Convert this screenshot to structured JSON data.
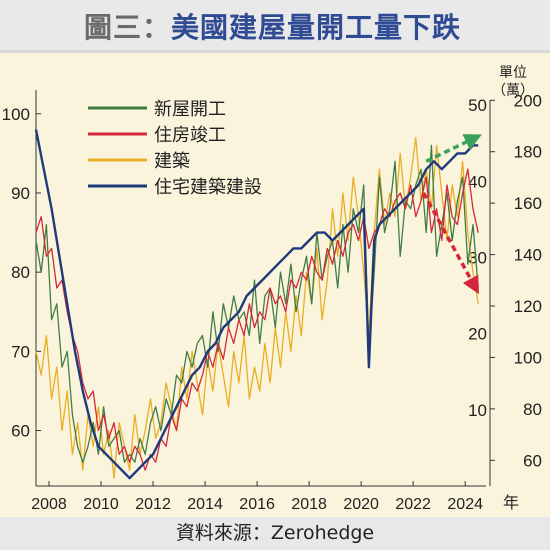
{
  "title": {
    "prefix": "圖三：",
    "main": "美國建屋量開工量下跌"
  },
  "source": "資料來源：Zerohedge",
  "chart_data": {
    "type": "line",
    "xlabel": "年",
    "x_ticks": [
      2008,
      2010,
      2012,
      2014,
      2016,
      2018,
      2020,
      2022,
      2024
    ],
    "x_range": [
      2007.5,
      2024.8
    ],
    "left_axis": {
      "ticks": [
        60,
        70,
        80,
        90,
        100
      ],
      "range": [
        53,
        103
      ]
    },
    "right_axis_1": {
      "ticks": [
        10,
        20,
        30,
        40,
        50
      ],
      "range": [
        0,
        52
      ]
    },
    "right_axis_2": {
      "label_line1": "單位",
      "label_line2": "（萬）",
      "ticks": [
        60,
        80,
        100,
        120,
        140,
        160,
        180,
        200
      ],
      "range": [
        50,
        204
      ]
    },
    "legend": [
      "新屋開工",
      "住房竣工",
      "建築",
      "住宅建築建設"
    ],
    "colors": [
      "#3f7d45",
      "#d4283a",
      "#e9ae24",
      "#1f3a7a"
    ],
    "series": [
      {
        "name": "新屋開工",
        "x": [
          2007.5,
          2007.7,
          2007.9,
          2008.1,
          2008.3,
          2008.5,
          2008.7,
          2008.9,
          2009.1,
          2009.3,
          2009.5,
          2009.7,
          2009.9,
          2010.1,
          2010.3,
          2010.5,
          2010.7,
          2010.9,
          2011.1,
          2011.3,
          2011.5,
          2011.7,
          2011.9,
          2012.1,
          2012.3,
          2012.5,
          2012.7,
          2012.9,
          2013.1,
          2013.3,
          2013.5,
          2013.7,
          2013.9,
          2014.1,
          2014.3,
          2014.5,
          2014.7,
          2014.9,
          2015.1,
          2015.3,
          2015.5,
          2015.7,
          2015.9,
          2016.1,
          2016.3,
          2016.5,
          2016.7,
          2016.9,
          2017.1,
          2017.3,
          2017.5,
          2017.7,
          2017.9,
          2018.1,
          2018.3,
          2018.5,
          2018.7,
          2018.9,
          2019.1,
          2019.3,
          2019.5,
          2019.7,
          2019.9,
          2020.1,
          2020.3,
          2020.5,
          2020.7,
          2020.9,
          2021.1,
          2021.3,
          2021.5,
          2021.7,
          2021.9,
          2022.1,
          2022.3,
          2022.5,
          2022.7,
          2022.9,
          2023.1,
          2023.3,
          2023.5,
          2023.7,
          2023.9,
          2024.1,
          2024.3,
          2024.5
        ],
        "y": [
          84,
          80,
          86,
          74,
          76,
          68,
          70,
          62,
          58,
          56,
          58,
          61,
          57,
          63,
          58,
          59,
          60,
          56,
          57,
          56,
          59,
          57,
          61,
          63,
          60,
          64,
          62,
          67,
          66,
          70,
          68,
          71,
          72,
          68,
          75,
          70,
          76,
          73,
          77,
          74,
          75,
          72,
          79,
          71,
          77,
          78,
          73,
          80,
          76,
          81,
          75,
          79,
          82,
          76,
          85,
          79,
          82,
          84,
          78,
          86,
          80,
          88,
          85,
          91,
          70,
          80,
          92,
          85,
          88,
          94,
          82,
          89,
          88,
          91,
          93,
          85,
          96,
          82,
          86,
          90,
          84,
          89,
          92,
          81,
          86,
          78
        ]
      },
      {
        "name": "住房竣工",
        "x": [
          2007.5,
          2007.7,
          2007.9,
          2008.1,
          2008.3,
          2008.5,
          2008.7,
          2008.9,
          2009.1,
          2009.3,
          2009.5,
          2009.7,
          2009.9,
          2010.1,
          2010.3,
          2010.5,
          2010.7,
          2010.9,
          2011.1,
          2011.3,
          2011.5,
          2011.7,
          2011.9,
          2012.1,
          2012.3,
          2012.5,
          2012.7,
          2012.9,
          2013.1,
          2013.3,
          2013.5,
          2013.7,
          2013.9,
          2014.1,
          2014.3,
          2014.5,
          2014.7,
          2014.9,
          2015.1,
          2015.3,
          2015.5,
          2015.7,
          2015.9,
          2016.1,
          2016.3,
          2016.5,
          2016.7,
          2016.9,
          2017.1,
          2017.3,
          2017.5,
          2017.7,
          2017.9,
          2018.1,
          2018.3,
          2018.5,
          2018.7,
          2018.9,
          2019.1,
          2019.3,
          2019.5,
          2019.7,
          2019.9,
          2020.1,
          2020.3,
          2020.5,
          2020.7,
          2020.9,
          2021.1,
          2021.3,
          2021.5,
          2021.7,
          2021.9,
          2022.1,
          2022.3,
          2022.5,
          2022.7,
          2022.9,
          2023.1,
          2023.3,
          2023.5,
          2023.7,
          2023.9,
          2024.1,
          2024.3,
          2024.5
        ],
        "y": [
          85,
          87,
          82,
          83,
          78,
          79,
          75,
          72,
          70,
          66,
          64,
          65,
          60,
          62,
          59,
          61,
          57,
          58,
          56,
          58,
          57,
          55,
          57,
          56,
          59,
          58,
          62,
          60,
          64,
          63,
          66,
          65,
          67,
          70,
          68,
          71,
          69,
          73,
          71,
          74,
          72,
          76,
          73,
          75,
          74,
          78,
          76,
          77,
          75,
          79,
          78,
          80,
          79,
          82,
          80,
          79,
          83,
          81,
          84,
          82,
          85,
          86,
          84,
          87,
          83,
          85,
          86,
          88,
          87,
          89,
          90,
          88,
          91,
          87,
          89,
          92,
          85,
          88,
          84,
          91,
          87,
          86,
          90,
          93,
          88,
          85
        ]
      },
      {
        "name": "建築",
        "x": [
          2007.5,
          2007.7,
          2007.9,
          2008.1,
          2008.3,
          2008.5,
          2008.7,
          2008.9,
          2009.1,
          2009.3,
          2009.5,
          2009.7,
          2009.9,
          2010.1,
          2010.3,
          2010.5,
          2010.7,
          2010.9,
          2011.1,
          2011.3,
          2011.5,
          2011.7,
          2011.9,
          2012.1,
          2012.3,
          2012.5,
          2012.7,
          2012.9,
          2013.1,
          2013.3,
          2013.5,
          2013.7,
          2013.9,
          2014.1,
          2014.3,
          2014.5,
          2014.7,
          2014.9,
          2015.1,
          2015.3,
          2015.5,
          2015.7,
          2015.9,
          2016.1,
          2016.3,
          2016.5,
          2016.7,
          2016.9,
          2017.1,
          2017.3,
          2017.5,
          2017.7,
          2017.9,
          2018.1,
          2018.3,
          2018.5,
          2018.7,
          2018.9,
          2019.1,
          2019.3,
          2019.5,
          2019.7,
          2019.9,
          2020.1,
          2020.3,
          2020.5,
          2020.7,
          2020.9,
          2021.1,
          2021.3,
          2021.5,
          2021.7,
          2021.9,
          2022.1,
          2022.3,
          2022.5,
          2022.7,
          2022.9,
          2023.1,
          2023.3,
          2023.5,
          2023.7,
          2023.9,
          2024.1,
          2024.3,
          2024.5
        ],
        "y": [
          70,
          67,
          72,
          64,
          68,
          60,
          65,
          57,
          61,
          55,
          62,
          58,
          63,
          57,
          60,
          54,
          61,
          58,
          55,
          62,
          57,
          60,
          64,
          59,
          61,
          66,
          63,
          60,
          68,
          64,
          70,
          66,
          62,
          69,
          65,
          71,
          67,
          63,
          70,
          66,
          72,
          64,
          68,
          65,
          71,
          66,
          73,
          68,
          75,
          70,
          77,
          72,
          80,
          76,
          83,
          74,
          79,
          88,
          82,
          90,
          84,
          92,
          87,
          80,
          72,
          85,
          93,
          86,
          90,
          87,
          95,
          88,
          92,
          97,
          89,
          93,
          88,
          96,
          90,
          84,
          91,
          87,
          94,
          85,
          80,
          76
        ]
      },
      {
        "name": "住宅建築建設",
        "x": [
          2007.5,
          2007.8,
          2008.1,
          2008.4,
          2008.7,
          2009.0,
          2009.3,
          2009.6,
          2009.9,
          2010.2,
          2010.5,
          2010.8,
          2011.1,
          2011.4,
          2011.7,
          2012.0,
          2012.3,
          2012.6,
          2012.9,
          2013.2,
          2013.5,
          2013.8,
          2014.1,
          2014.4,
          2014.7,
          2015.0,
          2015.3,
          2015.6,
          2015.9,
          2016.2,
          2016.5,
          2016.8,
          2017.1,
          2017.4,
          2017.7,
          2018.0,
          2018.3,
          2018.6,
          2018.9,
          2019.2,
          2019.5,
          2019.8,
          2020.1,
          2020.3,
          2020.5,
          2020.7,
          2021.0,
          2021.3,
          2021.6,
          2021.9,
          2022.2,
          2022.5,
          2022.8,
          2023.1,
          2023.4,
          2023.7,
          2024.0,
          2024.3,
          2024.5
        ],
        "y": [
          98,
          93,
          88,
          82,
          76,
          70,
          65,
          61,
          58,
          57,
          56,
          55,
          54,
          55,
          56,
          57,
          59,
          61,
          63,
          65,
          67,
          68,
          70,
          71,
          73,
          74,
          75,
          77,
          78,
          79,
          80,
          81,
          82,
          83,
          83,
          84,
          85,
          85,
          84,
          85,
          86,
          87,
          88,
          68,
          84,
          86,
          87,
          88,
          89,
          90,
          91,
          93,
          94,
          93,
          94,
          95,
          95,
          96,
          96
        ]
      }
    ],
    "annotations": [
      {
        "type": "arrow",
        "style": "dashed",
        "color": "#3aa35b",
        "from": [
          2022.5,
          94
        ],
        "to": [
          2024.4,
          97
        ]
      },
      {
        "type": "arrow",
        "style": "dashed",
        "color": "#d4283a",
        "from": [
          2022.4,
          90
        ],
        "to": [
          2024.4,
          78
        ]
      }
    ]
  }
}
